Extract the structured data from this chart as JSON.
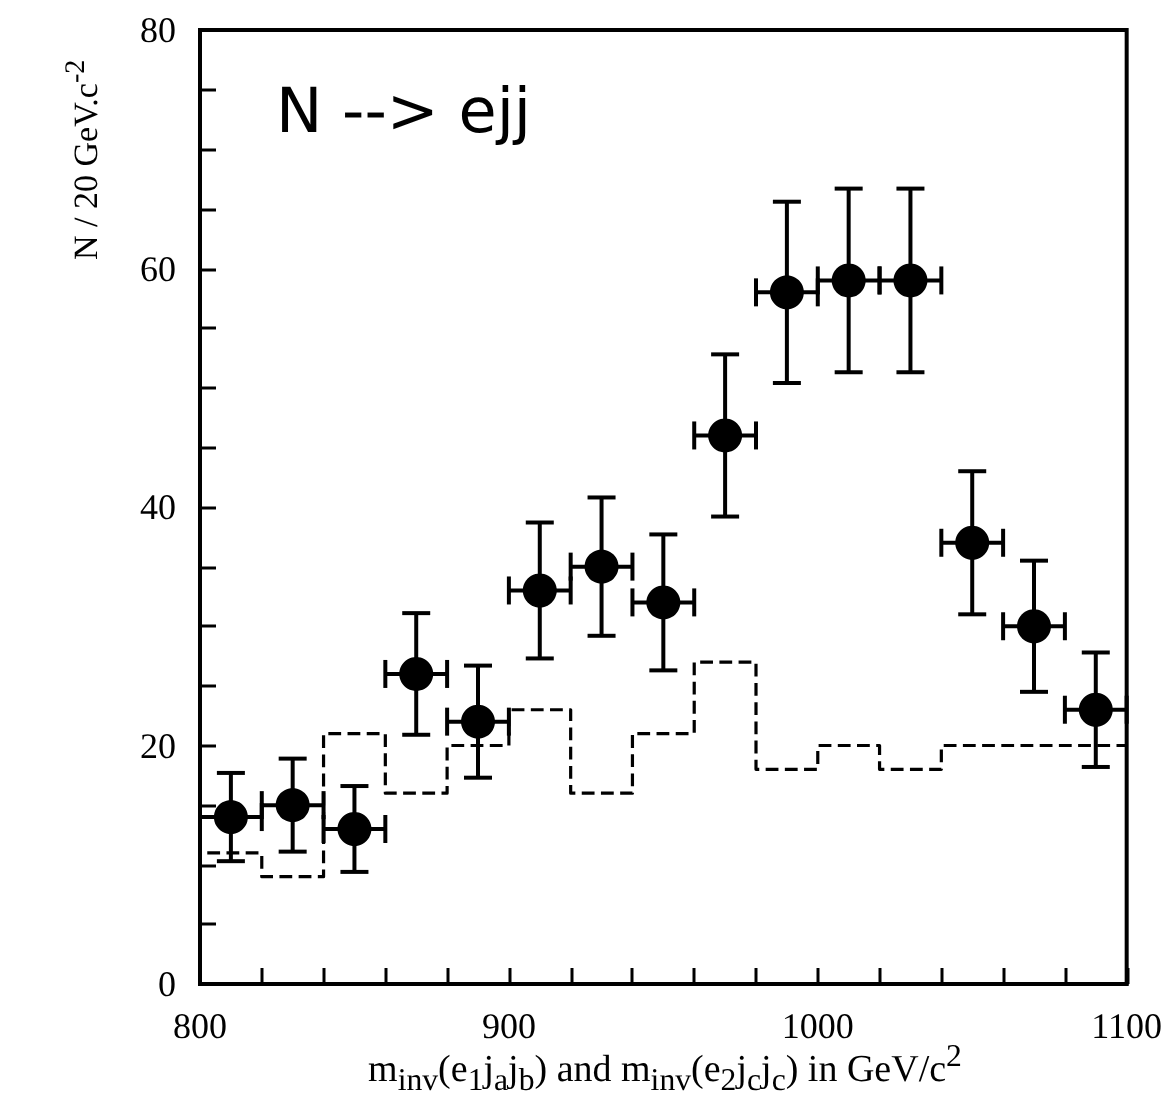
{
  "chart_data": {
    "type": "scatter",
    "xlabel": "m$_{inv}$(e$_{1}$j$_{a}$j$_{b}$) and m$_{inv}$(e$_{2}$j$_{c}$j$_{c}$) in GeV/c$^{2}$",
    "ylabel": "N / 20 GeV.c$^{-2}$",
    "annotations": [
      "N --> ejj"
    ],
    "xlim": [
      800,
      1100
    ],
    "xticks": [
      800,
      {
        "value": 820,
        "label": null
      },
      {
        "value": 840,
        "label": null
      },
      {
        "value": 860,
        "label": null
      },
      {
        "value": 880,
        "label": null
      },
      900,
      {
        "value": 920,
        "label": null
      },
      {
        "value": 940,
        "label": null
      },
      {
        "value": 960,
        "label": null
      },
      {
        "value": 980,
        "label": null
      },
      1000,
      {
        "value": 1020,
        "label": null
      },
      {
        "value": 1040,
        "label": null
      },
      {
        "value": 1060,
        "label": null
      },
      {
        "value": 1080,
        "label": null
      },
      1100
    ],
    "ylim": [
      0,
      80
    ],
    "yticks": [
      0,
      {
        "value": 5,
        "label": null
      },
      {
        "value": 10,
        "label": null
      },
      {
        "value": 15,
        "label": null
      },
      20,
      {
        "value": 25,
        "label": null
      },
      {
        "value": 30,
        "label": null
      },
      {
        "value": 35,
        "label": null
      },
      40,
      {
        "value": 45,
        "label": null
      },
      {
        "value": 50,
        "label": null
      },
      {
        "value": 55,
        "label": null
      },
      60,
      {
        "value": 65,
        "label": null
      },
      {
        "value": 70,
        "label": null
      },
      {
        "value": 75,
        "label": null
      },
      80
    ],
    "grid": false,
    "marker": "circle",
    "series": [
      {
        "color": "#000000",
        "x": [
          810,
          830,
          850,
          870,
          890,
          910,
          930,
          950,
          970,
          990,
          1010,
          1030,
          1050,
          1070,
          1090
        ],
        "values": [
          14,
          15,
          13,
          26,
          22,
          33,
          35,
          32,
          46,
          58,
          59,
          59,
          37,
          30,
          23
        ],
        "errors": [
          3.7,
          3.9,
          3.6,
          5.1,
          4.7,
          5.7,
          5.8,
          5.7,
          6.8,
          7.6,
          7.7,
          7.7,
          6,
          5.5,
          4.8
        ],
        "xerrors": [
          10,
          10,
          10,
          10,
          10,
          10,
          10,
          10,
          10,
          10,
          10,
          10,
          10,
          10,
          10
        ]
      },
      {
        "type": "step",
        "color": "#000000",
        "line_style": "dashed",
        "marker": "none",
        "x": [
          800,
          820,
          840,
          860,
          880,
          900,
          920,
          940,
          960,
          980,
          1000,
          1020,
          1040,
          1060,
          1080,
          1100
        ],
        "values": [
          10,
          11,
          9,
          21,
          16,
          20,
          23,
          16,
          21,
          27,
          18,
          20,
          18,
          20,
          20,
          20
        ]
      }
    ]
  }
}
